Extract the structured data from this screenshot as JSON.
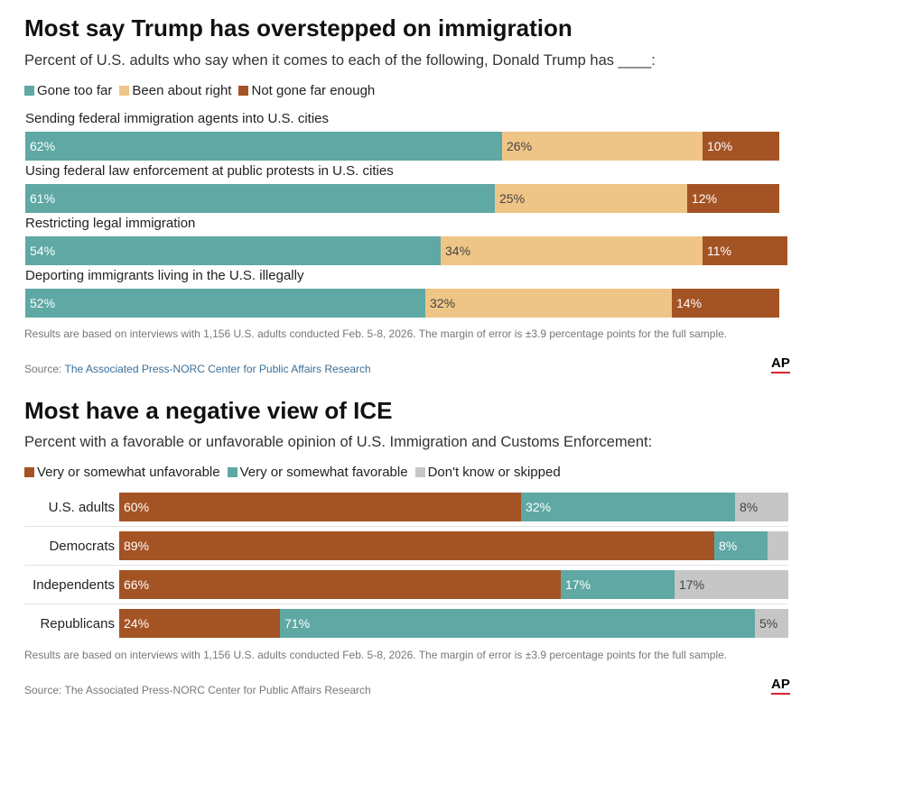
{
  "chart_data": [
    {
      "type": "bar",
      "title": "Most say Trump has overstepped on immigration",
      "subtitle": "Percent of U.S. adults who say when it comes to each of the following, Donald Trump has ____:",
      "orientation": "horizontal-stacked",
      "legend": [
        {
          "name": "Gone too far",
          "color": "#5fa8a4"
        },
        {
          "name": "Been about right",
          "color": "#efc587"
        },
        {
          "name": "Not gone far enough",
          "color": "#a45324"
        }
      ],
      "legend_position": "top-left",
      "categories": [
        "Sending federal immigration agents into U.S. cities",
        "Using federal law enforcement at public protests in U.S. cities",
        "Restricting legal immigration",
        "Deporting immigrants living in the U.S. illegally"
      ],
      "series": [
        {
          "name": "Gone too far",
          "values": [
            62,
            61,
            54,
            52
          ]
        },
        {
          "name": "Been about right",
          "values": [
            26,
            25,
            34,
            32
          ]
        },
        {
          "name": "Not gone far enough",
          "values": [
            10,
            12,
            11,
            14
          ]
        }
      ],
      "note": "Results are based on interviews with 1,156 U.S. adults conducted Feb. 5-8, 2026. The margin of error is ±3.9 percentage points for the full sample.",
      "source_prefix": "Source: ",
      "source": "The Associated Press-NORC Center for Public Affairs Research",
      "logo": "AP"
    },
    {
      "type": "bar",
      "title": "Most have a negative view of ICE",
      "subtitle": "Percent with a favorable or unfavorable opinion of U.S. Immigration and Customs Enforcement:",
      "orientation": "horizontal-stacked",
      "legend": [
        {
          "name": "Very or somewhat unfavorable",
          "color": "#a45324"
        },
        {
          "name": "Very or somewhat favorable",
          "color": "#5fa8a4"
        },
        {
          "name": "Don't know or skipped",
          "color": "#c6c6c6"
        }
      ],
      "legend_position": "top-left",
      "categories": [
        "U.S. adults",
        "Democrats",
        "Independents",
        "Republicans"
      ],
      "series": [
        {
          "name": "Very or somewhat unfavorable",
          "values": [
            60,
            89,
            66,
            24
          ]
        },
        {
          "name": "Very or somewhat favorable",
          "values": [
            32,
            8,
            17,
            71
          ]
        },
        {
          "name": "Don't know or skipped",
          "values": [
            8,
            null,
            17,
            5
          ]
        }
      ],
      "note": "Results are based on interviews with 1,156 U.S. adults conducted Feb. 5-8, 2026. The margin of error is ±3.9 percentage points for the full sample.",
      "source_prefix": "Source: ",
      "source": "The Associated Press-NORC Center for Public Affairs Research",
      "logo": "AP"
    }
  ]
}
